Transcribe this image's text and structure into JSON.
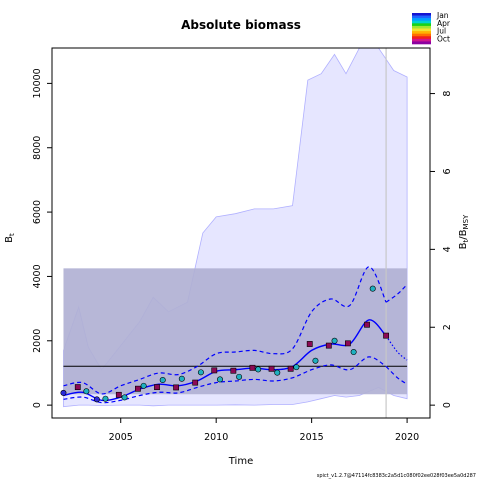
{
  "chart_data": {
    "type": "line",
    "title": "Absolute biomass",
    "xlabel": "Time",
    "ylabel_left": "B",
    "ylabel_left_sub": "t",
    "ylabel_right_main": "B",
    "ylabel_right_sub_t": "t",
    "ylabel_right_slash": "/B",
    "ylabel_right_sub_msy": "MSY",
    "xlim": [
      2001.4,
      2021.2
    ],
    "ylim_left": [
      -400,
      11100
    ],
    "ylim_right": [
      -0.33,
      9.17
    ],
    "x_ticks": [
      2005,
      2010,
      2015,
      2020
    ],
    "y_ticks_left": [
      0,
      2000,
      4000,
      6000,
      8000,
      10000
    ],
    "y_ticks_right": [
      0,
      2,
      4,
      6,
      8
    ],
    "bmsy": 1210,
    "bmsy_ci_band": [
      340,
      4250
    ],
    "bmsy_ci_x": [
      2002,
      2020
    ],
    "last_obs_time": 2018.9,
    "estimate": {
      "x": [
        2002,
        2003,
        2004,
        2005,
        2006,
        2007,
        2008,
        2009,
        2010,
        2011,
        2012,
        2013,
        2014,
        2015,
        2016,
        2017,
        2018,
        2018.9
      ],
      "median": [
        300,
        400,
        150,
        250,
        500,
        650,
        600,
        750,
        1050,
        1100,
        1150,
        1100,
        1200,
        1700,
        1900,
        1900,
        2650,
        2150
      ],
      "lower": [
        180,
        250,
        80,
        150,
        300,
        400,
        380,
        550,
        700,
        750,
        800,
        750,
        850,
        1100,
        1250,
        1100,
        1500,
        1200
      ],
      "upper": [
        600,
        700,
        350,
        600,
        800,
        1000,
        950,
        1200,
        1600,
        1650,
        1700,
        1600,
        1750,
        2900,
        3300,
        3100,
        4300,
        3200
      ]
    },
    "forecast": {
      "x": [
        2018.9,
        2019.5,
        2020
      ],
      "median": [
        2150,
        1650,
        1400
      ],
      "lower": [
        1200,
        850,
        650
      ],
      "upper": [
        3200,
        3450,
        3750
      ]
    },
    "outer_band": {
      "x": [
        2002,
        2002.8,
        2003.3,
        2004,
        2005,
        2006,
        2006.7,
        2007.5,
        2008.5,
        2009.3,
        2010,
        2011,
        2012,
        2013,
        2014,
        2014.8,
        2015.5,
        2016.2,
        2016.8,
        2017.5,
        2018.5,
        2019.3,
        2020
      ],
      "upper": [
        1700,
        3050,
        1800,
        1100,
        1850,
        2600,
        3350,
        2900,
        3200,
        5350,
        5850,
        5950,
        6100,
        6100,
        6200,
        10100,
        10300,
        10900,
        10300,
        11100,
        11100,
        10400,
        10200
      ],
      "lower": [
        -50,
        0,
        0,
        -10,
        0,
        0,
        -20,
        0,
        0,
        0,
        0,
        10,
        0,
        20,
        20,
        100,
        200,
        300,
        250,
        300,
        550,
        300,
        200
      ]
    },
    "observations": [
      {
        "t": 2002.0,
        "v": 380,
        "season": 0
      },
      {
        "t": 2002.75,
        "v": 560,
        "season": 2
      },
      {
        "t": 2003.2,
        "v": 430,
        "season": 1
      },
      {
        "t": 2003.75,
        "v": 180,
        "season": 0
      },
      {
        "t": 2004.2,
        "v": 200,
        "season": 1
      },
      {
        "t": 2004.9,
        "v": 320,
        "season": 2
      },
      {
        "t": 2005.2,
        "v": 240,
        "season": 1
      },
      {
        "t": 2005.9,
        "v": 510,
        "season": 2
      },
      {
        "t": 2006.2,
        "v": 600,
        "season": 1
      },
      {
        "t": 2006.9,
        "v": 560,
        "season": 2
      },
      {
        "t": 2007.2,
        "v": 780,
        "season": 1
      },
      {
        "t": 2007.9,
        "v": 550,
        "season": 2
      },
      {
        "t": 2008.2,
        "v": 820,
        "season": 1
      },
      {
        "t": 2008.9,
        "v": 700,
        "season": 2
      },
      {
        "t": 2009.2,
        "v": 1020,
        "season": 1
      },
      {
        "t": 2009.9,
        "v": 1080,
        "season": 2
      },
      {
        "t": 2010.2,
        "v": 800,
        "season": 1
      },
      {
        "t": 2010.9,
        "v": 1070,
        "season": 2
      },
      {
        "t": 2011.2,
        "v": 880,
        "season": 1
      },
      {
        "t": 2011.9,
        "v": 1160,
        "season": 2
      },
      {
        "t": 2012.2,
        "v": 1110,
        "season": 1
      },
      {
        "t": 2012.9,
        "v": 1130,
        "season": 2
      },
      {
        "t": 2013.2,
        "v": 1010,
        "season": 1
      },
      {
        "t": 2013.9,
        "v": 1130,
        "season": 2
      },
      {
        "t": 2014.2,
        "v": 1180,
        "season": 1
      },
      {
        "t": 2014.9,
        "v": 1900,
        "season": 2
      },
      {
        "t": 2015.2,
        "v": 1380,
        "season": 1
      },
      {
        "t": 2015.9,
        "v": 1850,
        "season": 2
      },
      {
        "t": 2016.2,
        "v": 2000,
        "season": 1
      },
      {
        "t": 2016.9,
        "v": 1920,
        "season": 2
      },
      {
        "t": 2017.2,
        "v": 1650,
        "season": 1
      },
      {
        "t": 2017.9,
        "v": 2500,
        "season": 2
      },
      {
        "t": 2018.2,
        "v": 3620,
        "season": 1
      },
      {
        "t": 2018.9,
        "v": 2160,
        "season": 2
      }
    ],
    "legend": {
      "position": "top-right",
      "labels": [
        "Jan",
        "Apr",
        "Jul",
        "Oct"
      ],
      "colors": [
        "#1414d2",
        "#1e64ff",
        "#00a0ff",
        "#00d2d2",
        "#19d219",
        "#a0e632",
        "#f0e632",
        "#ffb400",
        "#ff6e00",
        "#f01e1e",
        "#d2148c",
        "#8c00a0"
      ]
    },
    "colors": {
      "ci_band": "#d3d3d3",
      "outer_band": "#e6e6ff",
      "outer_band_line": "#b0b0ff",
      "inner_band": "rgba(140,140,210,0.45)",
      "estimate": "#0000ff",
      "bmsy_line": "#000000",
      "last_obs_line": "#c8c8c8"
    }
  },
  "footer_text": "spict_v1.2.7@47114fc8383c2a5d1c080f02ee028f03ee5a0d287"
}
